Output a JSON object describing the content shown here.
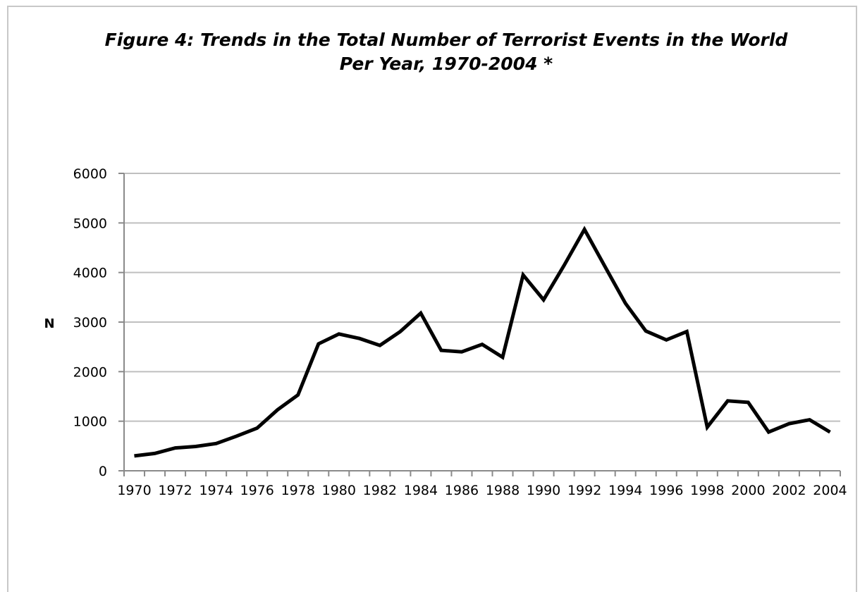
{
  "chart_data": {
    "type": "line",
    "title": "Figure 4: Trends in the Total Number of Terrorist Events in the World\nPer Year, 1970-2004 *",
    "xlabel": "",
    "ylabel": "N",
    "ylim": [
      0,
      6000
    ],
    "yticks": [
      0,
      1000,
      2000,
      3000,
      4000,
      5000,
      6000
    ],
    "grid": true,
    "legend": "none",
    "x": [
      1970,
      1971,
      1972,
      1973,
      1974,
      1975,
      1976,
      1977,
      1978,
      1979,
      1980,
      1981,
      1982,
      1983,
      1984,
      1985,
      1986,
      1987,
      1988,
      1989,
      1990,
      1991,
      1992,
      1993,
      1994,
      1995,
      1996,
      1997,
      1998,
      1999,
      2000,
      2001,
      2002,
      2003,
      2004
    ],
    "xtick_labels": [
      "1970",
      "1972",
      "1974",
      "1976",
      "1978",
      "1980",
      "1982",
      "1984",
      "1986",
      "1988",
      "1990",
      "1992",
      "1994",
      "1996",
      "1998",
      "2000",
      "2002",
      "2004"
    ],
    "series": [
      {
        "values": [
          300,
          350,
          460,
          490,
          550,
          700,
          860,
          1230,
          1530,
          2560,
          2760,
          2670,
          2530,
          2810,
          3180,
          2430,
          2400,
          2550,
          2290,
          3950,
          3450,
          4140,
          4870,
          4120,
          3380,
          2820,
          2640,
          2810,
          880,
          1410,
          1380,
          780,
          950,
          1030,
          780
        ],
        "color": "#000000"
      }
    ],
    "colors": {
      "grid": "#bfbfbf",
      "axis": "#8a8a8a",
      "line": "#000000"
    }
  }
}
